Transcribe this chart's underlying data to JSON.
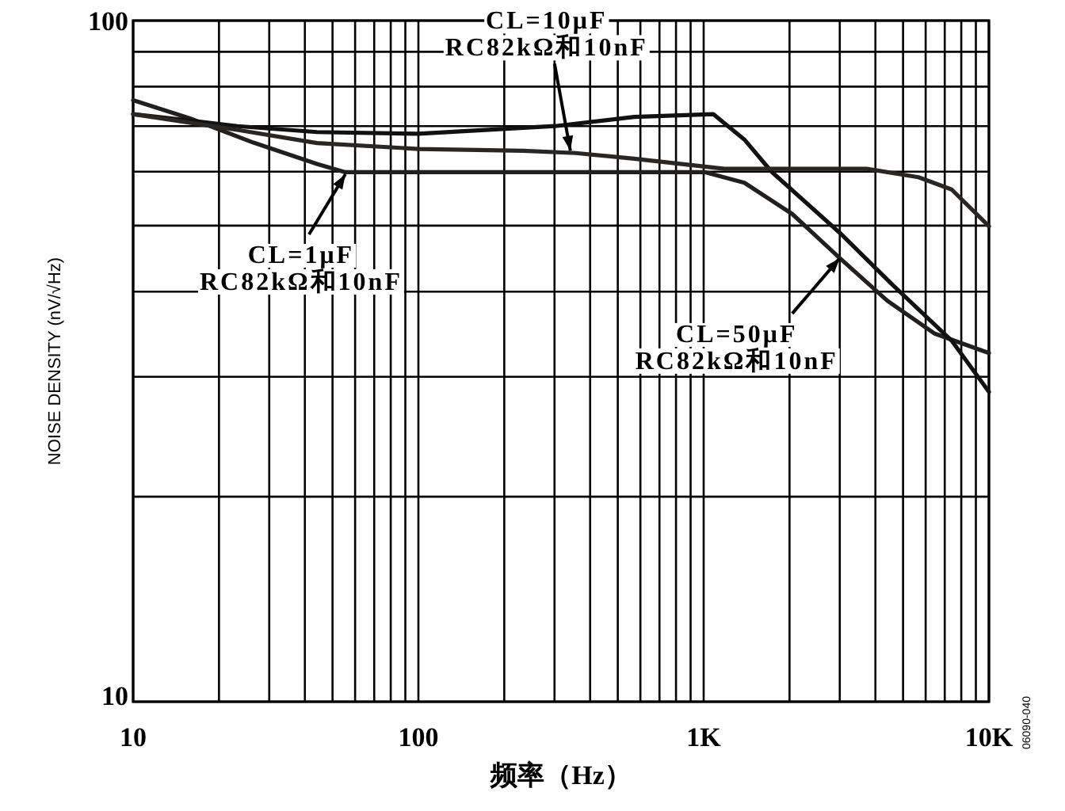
{
  "chart_data": {
    "type": "line",
    "xlabel": "频率（Hz）",
    "ylabel": "NOISE DENSITY (nV/√Hz)",
    "log": "xy",
    "xlim": [
      10,
      10000
    ],
    "ylim": [
      10,
      100
    ],
    "xticks": [
      10,
      {
        "value": 20,
        "label": null
      },
      {
        "value": 30,
        "label": null
      },
      {
        "value": 40,
        "label": null
      },
      {
        "value": 50,
        "label": null
      },
      {
        "value": 60,
        "label": null
      },
      {
        "value": 70,
        "label": null
      },
      {
        "value": 80,
        "label": null
      },
      {
        "value": 90,
        "label": null
      },
      100,
      {
        "value": 200,
        "label": null
      },
      {
        "value": 300,
        "label": null
      },
      {
        "value": 400,
        "label": null
      },
      {
        "value": 500,
        "label": null
      },
      {
        "value": 600,
        "label": null
      },
      {
        "value": 700,
        "label": null
      },
      {
        "value": 800,
        "label": null
      },
      {
        "value": 900,
        "label": null
      },
      {
        "value": 1000,
        "label": "1K"
      },
      {
        "value": 2000,
        "label": null
      },
      {
        "value": 3000,
        "label": null
      },
      {
        "value": 4000,
        "label": null
      },
      {
        "value": 5000,
        "label": null
      },
      {
        "value": 6000,
        "label": null
      },
      {
        "value": 7000,
        "label": null
      },
      {
        "value": 8000,
        "label": null
      },
      {
        "value": 9000,
        "label": null
      },
      {
        "value": 10000,
        "label": "10K"
      }
    ],
    "yticks": [
      10,
      {
        "value": 20,
        "label": null
      },
      {
        "value": 30,
        "label": null
      },
      {
        "value": 40,
        "label": null
      },
      {
        "value": 50,
        "label": null
      },
      {
        "value": 60,
        "label": null
      },
      {
        "value": 70,
        "label": null
      },
      {
        "value": 80,
        "label": null
      },
      {
        "value": 90,
        "label": null
      },
      100
    ],
    "grid": true,
    "marker": "none",
    "line_style": "solid",
    "series": [
      {
        "color": "#231f1c",
        "x": [
          10,
          15.9,
          26.4,
          44.1,
          55.5,
          100,
          301,
          1013,
          1389,
          2045,
          3000,
          4400,
          6460,
          10000
        ],
        "values": [
          76.4,
          71.8,
          66.2,
          61.6,
          59.9,
          59.9,
          59.9,
          59.9,
          57.8,
          52.0,
          44.8,
          38.8,
          34.7,
          32.5
        ]
      },
      {
        "color": "#111111",
        "x": [
          10,
          23.2,
          44.1,
          100,
          301,
          570,
          1080,
          1389,
          1729,
          3000,
          4600,
          7400,
          10000
        ],
        "values": [
          72.9,
          70.0,
          68.6,
          68.2,
          70.0,
          72.2,
          72.9,
          66.9,
          60.0,
          48.8,
          40.9,
          33.9,
          28.5
        ]
      },
      {
        "color": "#2b2622",
        "x": [
          10,
          23.2,
          44.1,
          100,
          233,
          356,
          570,
          1183,
          2045,
          3730,
          5660,
          7400,
          10000
        ],
        "values": [
          72.9,
          69.1,
          66.1,
          64.8,
          64.4,
          63.9,
          62.7,
          60.6,
          60.6,
          60.6,
          58.9,
          56.5,
          49.9
        ]
      }
    ],
    "annotations": [
      {
        "text": "CL=10μF\nRC82kΩ和10nF",
        "x": 341,
        "y": 64.4
      },
      {
        "text": "CL=1μF\nRC82kΩ和10nF",
        "x": 55.5,
        "y": 59.5
      },
      {
        "text": "CL=50μF\nRC82kΩ和10nF",
        "x": 3000,
        "y": 44.8
      },
      "06090-040"
    ]
  }
}
